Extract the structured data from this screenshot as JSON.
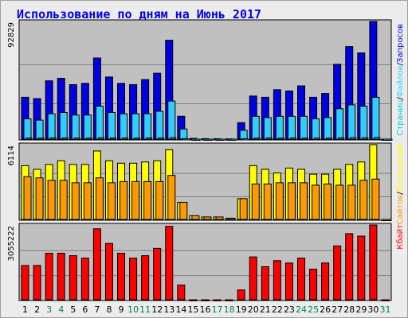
{
  "title": "Использование по дням на Июнь 2017",
  "colors": {
    "bg_panel": "#c0c0c0",
    "hits": "#0000e0",
    "files": "#33ccff",
    "pages": "#00cccc",
    "visits": "#ffff00",
    "sites": "#ff9900",
    "kbytes": "#ff0000",
    "weekday_label": "#000000",
    "weekend_label": "#00805a"
  },
  "chart_data": [
    {
      "type": "bar",
      "panel": "requests",
      "y_max_label": "92829",
      "ylim": [
        0,
        92829
      ],
      "legend": [
        "Запросов",
        "/",
        "Файлов",
        "/",
        "Страниц"
      ],
      "categories": [
        "1",
        "2",
        "3",
        "4",
        "5",
        "6",
        "7",
        "8",
        "9",
        "10",
        "11",
        "12",
        "13",
        "14",
        "15",
        "16",
        "17",
        "18",
        "19",
        "20",
        "21",
        "22",
        "23",
        "24",
        "25",
        "26",
        "27",
        "28",
        "29",
        "30",
        "31"
      ],
      "series": [
        {
          "name": "Запросов",
          "values": [
            33000,
            32000,
            46000,
            48000,
            43000,
            44000,
            64000,
            49000,
            44000,
            43000,
            47000,
            52000,
            78000,
            18000,
            600,
            400,
            300,
            200,
            13000,
            34000,
            33000,
            39000,
            38000,
            42000,
            33000,
            36000,
            59000,
            73000,
            68000,
            92829,
            0
          ]
        },
        {
          "name": "Файлов",
          "values": [
            16000,
            15000,
            20000,
            21000,
            19000,
            19000,
            26000,
            21000,
            20000,
            20000,
            20000,
            22000,
            30000,
            8000,
            0,
            0,
            0,
            0,
            7000,
            18000,
            17000,
            18000,
            18000,
            18000,
            16000,
            17000,
            24000,
            27000,
            26000,
            33000,
            0
          ]
        },
        {
          "name": "Страниц",
          "values": [
            900,
            900,
            1000,
            1000,
            900,
            900,
            1100,
            1000,
            900,
            900,
            1000,
            1000,
            1200,
            400,
            0,
            0,
            0,
            0,
            300,
            900,
            900,
            900,
            900,
            900,
            800,
            900,
            1100,
            1200,
            1100,
            1300,
            0
          ]
        }
      ]
    },
    {
      "type": "bar",
      "panel": "visits",
      "y_max_label": "6114",
      "ylim": [
        0,
        6114
      ],
      "legend": [
        "Посещений",
        "/",
        "Сайтов"
      ],
      "categories": [
        "1",
        "2",
        "3",
        "4",
        "5",
        "6",
        "7",
        "8",
        "9",
        "10",
        "11",
        "12",
        "13",
        "14",
        "15",
        "16",
        "17",
        "18",
        "19",
        "20",
        "21",
        "22",
        "23",
        "24",
        "25",
        "26",
        "27",
        "28",
        "29",
        "30",
        "31"
      ],
      "series": [
        {
          "name": "Посещений",
          "values": [
            4400,
            4100,
            4500,
            4800,
            4500,
            4500,
            5600,
            4800,
            4600,
            4600,
            4700,
            4800,
            5700,
            1400,
            300,
            200,
            200,
            100,
            1700,
            4400,
            4100,
            3800,
            4200,
            4100,
            3700,
            3700,
            4100,
            4500,
            4700,
            6114,
            0
          ]
        },
        {
          "name": "Сайтов",
          "values": [
            3500,
            3400,
            3200,
            3200,
            3000,
            3000,
            3400,
            3000,
            3100,
            3100,
            3100,
            3100,
            3600,
            1400,
            300,
            200,
            200,
            100,
            1700,
            2900,
            2900,
            3000,
            3000,
            3000,
            2800,
            2900,
            2800,
            2800,
            3200,
            3300,
            0
          ]
        }
      ]
    },
    {
      "type": "bar",
      "panel": "kbytes",
      "y_max_label": "3055222",
      "ylim": [
        0,
        3055222
      ],
      "legend": [
        "Кбайт"
      ],
      "categories": [
        "1",
        "2",
        "3",
        "4",
        "5",
        "6",
        "7",
        "8",
        "9",
        "10",
        "11",
        "12",
        "13",
        "14",
        "15",
        "16",
        "17",
        "18",
        "19",
        "20",
        "21",
        "22",
        "23",
        "24",
        "25",
        "26",
        "27",
        "28",
        "29",
        "30",
        "31"
      ],
      "series": [
        {
          "name": "Кбайт",
          "values": [
            1400000,
            1400000,
            1900000,
            1900000,
            1800000,
            1700000,
            2900000,
            2300000,
            1900000,
            1700000,
            1800000,
            2100000,
            3000000,
            600000,
            0,
            0,
            0,
            0,
            400000,
            1750000,
            1350000,
            1600000,
            1500000,
            1700000,
            1250000,
            1500000,
            2200000,
            2700000,
            2600000,
            3055222,
            0
          ]
        }
      ]
    }
  ],
  "x_labels": [
    "1",
    "2",
    "3",
    "4",
    "5",
    "6",
    "7",
    "8",
    "9",
    "10",
    "11",
    "12",
    "13",
    "14",
    "15",
    "16",
    "17",
    "18",
    "19",
    "20",
    "21",
    "22",
    "23",
    "24",
    "25",
    "26",
    "27",
    "28",
    "29",
    "30",
    "31"
  ],
  "weekend_days": [
    3,
    4,
    10,
    11,
    17,
    18,
    24,
    25,
    31
  ]
}
